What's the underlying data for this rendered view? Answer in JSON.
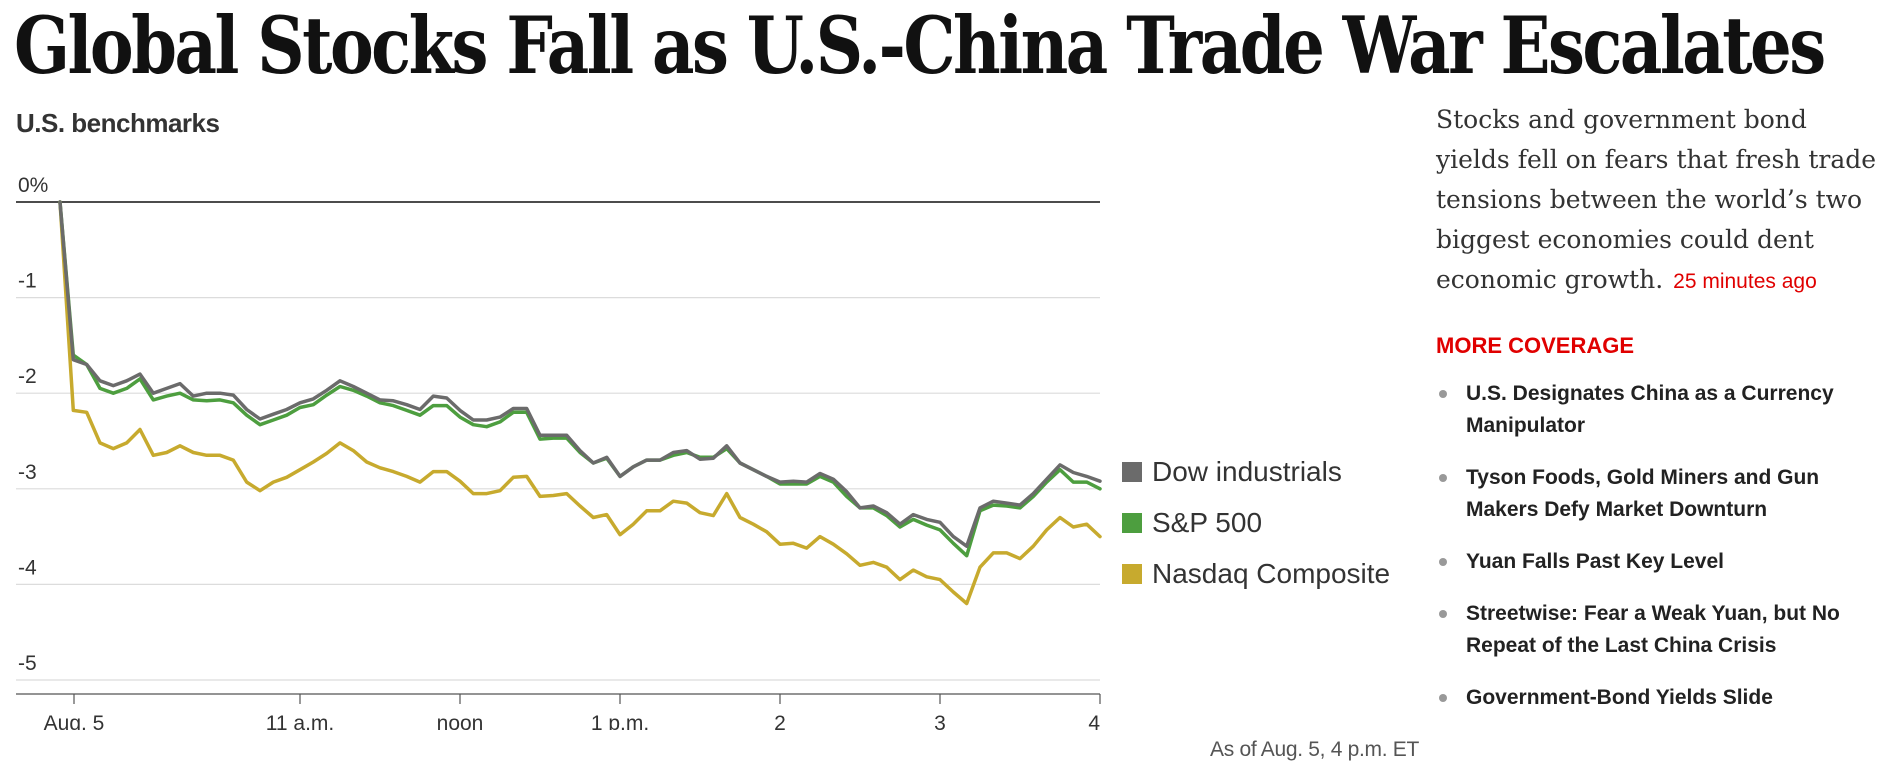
{
  "headline": "Global Stocks Fall as U.S.-China Trade War Escalates",
  "summary": {
    "text": "Stocks and government bond yields fell on fears that fresh trade tensions between the world’s two biggest economies could dent economic growth.",
    "timestamp": "25 minutes ago"
  },
  "more_coverage": {
    "heading": "MORE COVERAGE",
    "items": [
      "U.S. Designates China as a Currency Manipulator",
      "Tyson Foods, Gold Miners and Gun Makers Defy Market Downturn",
      "Yuan Falls Past Key Level",
      "Streetwise: Fear a Weak Yuan, but No Repeat of the Last China Crisis",
      "Government-Bond Yields Slide"
    ]
  },
  "chart_data": {
    "type": "line",
    "title": "U.S. benchmarks",
    "xlabel": "",
    "ylabel": "",
    "ylim": [
      -5,
      0
    ],
    "yticks": [
      0,
      -1,
      -2,
      -3,
      -4,
      -5
    ],
    "ytick_labels": [
      "0%",
      "-1",
      "-2",
      "-3",
      "-4",
      "-5"
    ],
    "xlim": [
      9.5,
      16
    ],
    "xticks": [
      {
        "x": 9.5,
        "label": "Aug. 5"
      },
      {
        "x": 11,
        "label": "11 a.m."
      },
      {
        "x": 12,
        "label": "noon"
      },
      {
        "x": 13,
        "label": "1 p.m."
      },
      {
        "x": 14,
        "label": "2"
      },
      {
        "x": 15,
        "label": "3"
      },
      {
        "x": 16,
        "label": "4"
      }
    ],
    "x": [
      9.5,
      9.583,
      9.667,
      9.75,
      9.833,
      9.917,
      10.0,
      10.083,
      10.167,
      10.25,
      10.333,
      10.417,
      10.5,
      10.583,
      10.667,
      10.75,
      10.833,
      10.917,
      11.0,
      11.083,
      11.167,
      11.25,
      11.333,
      11.417,
      11.5,
      11.583,
      11.667,
      11.75,
      11.833,
      11.917,
      12.0,
      12.083,
      12.167,
      12.25,
      12.333,
      12.417,
      12.5,
      12.583,
      12.667,
      12.75,
      12.833,
      12.917,
      13.0,
      13.083,
      13.167,
      13.25,
      13.333,
      13.417,
      13.5,
      13.583,
      13.667,
      13.75,
      13.833,
      13.917,
      14.0,
      14.083,
      14.167,
      14.25,
      14.333,
      14.417,
      14.5,
      14.583,
      14.667,
      14.75,
      14.833,
      14.917,
      15.0,
      15.083,
      15.167,
      15.25,
      15.333,
      15.417,
      15.5,
      15.583,
      15.667,
      15.75,
      15.833,
      15.917,
      16.0
    ],
    "series": [
      {
        "name": "Dow industrials",
        "color": "#6b6b6b",
        "values": [
          0,
          -1.65,
          -1.7,
          -1.87,
          -1.92,
          -1.87,
          -1.8,
          -2.0,
          -1.95,
          -1.9,
          -2.03,
          -2.0,
          -2.0,
          -2.02,
          -2.17,
          -2.27,
          -2.22,
          -2.17,
          -2.1,
          -2.06,
          -1.97,
          -1.87,
          -1.93,
          -2.0,
          -2.07,
          -2.08,
          -2.12,
          -2.17,
          -2.03,
          -2.05,
          -2.18,
          -2.28,
          -2.28,
          -2.25,
          -2.16,
          -2.16,
          -2.44,
          -2.44,
          -2.44,
          -2.6,
          -2.73,
          -2.67,
          -2.87,
          -2.77,
          -2.7,
          -2.7,
          -2.62,
          -2.6,
          -2.69,
          -2.68,
          -2.55,
          -2.73,
          -2.8,
          -2.87,
          -2.93,
          -2.92,
          -2.93,
          -2.84,
          -2.9,
          -3.03,
          -3.2,
          -3.18,
          -3.25,
          -3.37,
          -3.27,
          -3.32,
          -3.35,
          -3.5,
          -3.6,
          -3.2,
          -3.13,
          -3.15,
          -3.17,
          -3.05,
          -2.9,
          -2.75,
          -2.83,
          -2.87,
          -2.92
        ]
      },
      {
        "name": "S&P 500",
        "color": "#4d9e3f",
        "values": [
          0,
          -1.6,
          -1.7,
          -1.95,
          -2.0,
          -1.95,
          -1.85,
          -2.07,
          -2.03,
          -2.0,
          -2.07,
          -2.08,
          -2.07,
          -2.1,
          -2.23,
          -2.33,
          -2.28,
          -2.23,
          -2.15,
          -2.12,
          -2.02,
          -1.93,
          -1.97,
          -2.03,
          -2.1,
          -2.13,
          -2.18,
          -2.23,
          -2.13,
          -2.13,
          -2.25,
          -2.33,
          -2.35,
          -2.3,
          -2.2,
          -2.2,
          -2.48,
          -2.47,
          -2.47,
          -2.62,
          -2.73,
          -2.68,
          -2.87,
          -2.77,
          -2.7,
          -2.7,
          -2.65,
          -2.62,
          -2.67,
          -2.67,
          -2.58,
          -2.73,
          -2.8,
          -2.87,
          -2.95,
          -2.95,
          -2.95,
          -2.87,
          -2.93,
          -3.08,
          -3.2,
          -3.2,
          -3.28,
          -3.4,
          -3.32,
          -3.38,
          -3.43,
          -3.57,
          -3.7,
          -3.23,
          -3.17,
          -3.18,
          -3.2,
          -3.08,
          -2.93,
          -2.8,
          -2.93,
          -2.93,
          -3.0
        ]
      },
      {
        "name": "Nasdaq Composite",
        "color": "#c7aa2e",
        "values": [
          0,
          -2.18,
          -2.2,
          -2.52,
          -2.58,
          -2.52,
          -2.38,
          -2.65,
          -2.62,
          -2.55,
          -2.62,
          -2.65,
          -2.65,
          -2.7,
          -2.93,
          -3.02,
          -2.93,
          -2.88,
          -2.8,
          -2.72,
          -2.63,
          -2.52,
          -2.6,
          -2.72,
          -2.78,
          -2.82,
          -2.87,
          -2.93,
          -2.82,
          -2.82,
          -2.92,
          -3.05,
          -3.05,
          -3.02,
          -2.88,
          -2.87,
          -3.08,
          -3.07,
          -3.05,
          -3.18,
          -3.3,
          -3.27,
          -3.48,
          -3.37,
          -3.23,
          -3.23,
          -3.13,
          -3.15,
          -3.25,
          -3.28,
          -3.05,
          -3.3,
          -3.37,
          -3.45,
          -3.58,
          -3.57,
          -3.62,
          -3.5,
          -3.58,
          -3.68,
          -3.8,
          -3.77,
          -3.82,
          -3.95,
          -3.85,
          -3.92,
          -3.95,
          -4.08,
          -4.2,
          -3.82,
          -3.67,
          -3.67,
          -3.73,
          -3.6,
          -3.43,
          -3.3,
          -3.4,
          -3.37,
          -3.5
        ]
      }
    ],
    "legend_position": "right",
    "note": "As of Aug. 5, 4 p.m. ET"
  }
}
